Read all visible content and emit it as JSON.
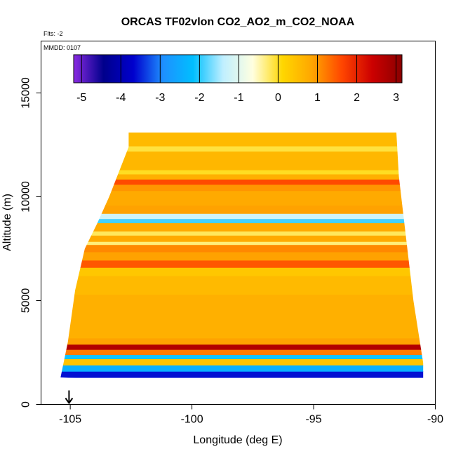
{
  "chart_data": {
    "type": "heatmap",
    "title": "ORCAS TF02vlon CO2_AO2_m_CO2_NOAA",
    "annotations": {
      "flights": "Flts: -2",
      "date": "MMDD: 0107"
    },
    "xlabel": "Longitude (deg E)",
    "ylabel": "Altitude (m)",
    "xlim": [
      -106.2,
      -90
    ],
    "ylim": [
      0,
      17500
    ],
    "x_ticks": [
      -105,
      -100,
      -95,
      -90
    ],
    "x_tick_labels": [
      "-105",
      "-100",
      "-95",
      "-90"
    ],
    "y_ticks": [
      0,
      5000,
      10000,
      15000
    ],
    "y_tick_labels": [
      "0",
      "5000",
      "10000",
      "15000"
    ],
    "colorbar": {
      "range": [
        -5.2,
        3.15
      ],
      "ticks": [
        -5,
        -4,
        -3,
        -2,
        -1,
        0,
        1,
        2,
        3
      ],
      "tick_labels": [
        "-5",
        "-4",
        "-3",
        "-2",
        "-1",
        "0",
        "1",
        "2",
        "3"
      ],
      "colors": [
        "#8a2be2",
        "#00008b",
        "#0000cd",
        "#1e90ff",
        "#00bfff",
        "#bfefff",
        "#ffffe0",
        "#ffd700",
        "#ffa500",
        "#ff4500",
        "#cc0000",
        "#8b0000"
      ]
    },
    "arrow_marker": {
      "x": -105.05,
      "label": ""
    },
    "bands": [
      {
        "ymin": 1300,
        "ymax": 1600,
        "value": -3.6
      },
      {
        "ymin": 1600,
        "ymax": 1900,
        "value": -2.4
      },
      {
        "ymin": 1900,
        "ymax": 2200,
        "value": 0.4
      },
      {
        "ymin": 2200,
        "ymax": 2400,
        "value": -2.1
      },
      {
        "ymin": 2400,
        "ymax": 2650,
        "value": 1.2
      },
      {
        "ymin": 2650,
        "ymax": 2900,
        "value": 2.7
      },
      {
        "ymin": 2900,
        "ymax": 3200,
        "value": 0.9
      },
      {
        "ymin": 3200,
        "ymax": 5300,
        "value": 0.7
      },
      {
        "ymin": 5300,
        "ymax": 6200,
        "value": 0.55
      },
      {
        "ymin": 6200,
        "ymax": 6600,
        "value": 0.35
      },
      {
        "ymin": 6600,
        "ymax": 6950,
        "value": 1.5
      },
      {
        "ymin": 6950,
        "ymax": 7350,
        "value": 0.9
      },
      {
        "ymin": 7350,
        "ymax": 7700,
        "value": 1.1
      },
      {
        "ymin": 7700,
        "ymax": 7850,
        "value": -0.3
      },
      {
        "ymin": 7850,
        "ymax": 8150,
        "value": 0.8
      },
      {
        "ymin": 8150,
        "ymax": 8350,
        "value": -0.2
      },
      {
        "ymin": 8350,
        "ymax": 8750,
        "value": 0.8
      },
      {
        "ymin": 8750,
        "ymax": 8950,
        "value": -1.9
      },
      {
        "ymin": 8950,
        "ymax": 9200,
        "value": -1.2
      },
      {
        "ymin": 9200,
        "ymax": 9600,
        "value": 0.9
      },
      {
        "ymin": 9600,
        "ymax": 10300,
        "value": 0.8
      },
      {
        "ymin": 10300,
        "ymax": 10600,
        "value": 1.0
      },
      {
        "ymin": 10600,
        "ymax": 10850,
        "value": 1.6
      },
      {
        "ymin": 10850,
        "ymax": 11100,
        "value": 0.7
      },
      {
        "ymin": 11100,
        "ymax": 11300,
        "value": 0.0
      },
      {
        "ymin": 11300,
        "ymax": 12200,
        "value": 0.6
      },
      {
        "ymin": 12200,
        "ymax": 12450,
        "value": -0.1
      },
      {
        "ymin": 12450,
        "ymax": 13100,
        "value": 0.55
      }
    ],
    "region_left_edge": [
      {
        "y": 1300,
        "x": -105.4
      },
      {
        "y": 3000,
        "x": -105.1
      },
      {
        "y": 5500,
        "x": -104.8
      },
      {
        "y": 7500,
        "x": -104.4
      },
      {
        "y": 8700,
        "x": -103.9
      },
      {
        "y": 10000,
        "x": -103.4
      },
      {
        "y": 12400,
        "x": -102.6
      },
      {
        "y": 13100,
        "x": -102.6
      }
    ],
    "region_right_edge": [
      {
        "y": 13100,
        "x": -91.6
      },
      {
        "y": 11000,
        "x": -91.5
      },
      {
        "y": 8000,
        "x": -91.2
      },
      {
        "y": 5000,
        "x": -90.9
      },
      {
        "y": 2000,
        "x": -90.5
      },
      {
        "y": 500,
        "x": -90.5
      }
    ]
  }
}
